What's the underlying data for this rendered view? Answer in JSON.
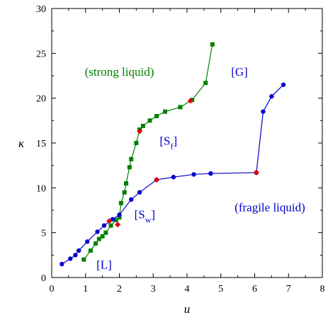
{
  "chart_data": {
    "type": "scatter",
    "xlabel": "u",
    "ylabel": "κ",
    "xlim": [
      0,
      8
    ],
    "ylim": [
      0,
      30
    ],
    "xticks": [
      "0",
      "1",
      "2",
      "3",
      "4",
      "5",
      "6",
      "7",
      "8"
    ],
    "yticks": [
      "0",
      "5",
      "10",
      "15",
      "20",
      "25",
      "30"
    ],
    "grid": false,
    "series": [
      {
        "color": "#008000",
        "marker": "square",
        "points": [
          [
            0.95,
            2.0
          ],
          [
            1.15,
            3.0
          ],
          [
            1.3,
            3.8
          ],
          [
            1.4,
            4.3
          ],
          [
            1.5,
            4.6
          ],
          [
            1.6,
            5.0
          ],
          [
            1.75,
            5.8
          ],
          [
            1.9,
            6.4
          ],
          [
            2.0,
            6.7
          ],
          [
            2.05,
            8.3
          ],
          [
            2.15,
            9.5
          ],
          [
            2.2,
            10.5
          ],
          [
            2.3,
            12.3
          ],
          [
            2.35,
            13.2
          ],
          [
            2.5,
            15.0
          ],
          [
            2.6,
            16.5
          ],
          [
            2.7,
            16.9
          ],
          [
            2.9,
            17.5
          ],
          [
            3.1,
            18.0
          ],
          [
            3.35,
            18.5
          ],
          [
            3.8,
            19.0
          ],
          [
            4.15,
            19.8
          ],
          [
            4.55,
            21.7
          ],
          [
            4.75,
            26.0
          ]
        ]
      },
      {
        "color": "#0000cc",
        "marker": "circle",
        "points": [
          [
            0.3,
            1.5
          ],
          [
            0.55,
            2.1
          ],
          [
            0.7,
            2.5
          ],
          [
            0.8,
            3.0
          ],
          [
            1.05,
            4.0
          ],
          [
            1.35,
            5.1
          ],
          [
            1.55,
            5.8
          ],
          [
            1.8,
            6.5
          ],
          [
            2.0,
            7.0
          ],
          [
            2.35,
            8.7
          ],
          [
            2.6,
            9.5
          ],
          [
            3.1,
            10.9
          ],
          [
            3.6,
            11.2
          ],
          [
            4.2,
            11.5
          ],
          [
            4.7,
            11.6
          ],
          [
            6.05,
            11.7
          ],
          [
            6.25,
            18.5
          ],
          [
            6.5,
            20.2
          ],
          [
            6.85,
            21.5
          ]
        ]
      }
    ],
    "red_markers": [
      [
        1.7,
        6.3
      ],
      [
        1.95,
        5.9
      ],
      [
        2.6,
        16.3
      ],
      [
        3.1,
        10.9
      ],
      [
        4.1,
        19.7
      ],
      [
        6.05,
        11.7
      ]
    ],
    "annotations": [
      {
        "text": "(strong liquid)",
        "x": 2.0,
        "y": 22.5,
        "color": "#008000"
      },
      {
        "text": "[G]",
        "x": 5.55,
        "y": 22.5,
        "color": "#0000cc"
      },
      {
        "text": "[S",
        "sub": "f",
        "close": "]",
        "x": 3.45,
        "y": 14.8,
        "color": "#0000cc"
      },
      {
        "text": "[S",
        "sub": "w",
        "close": "]",
        "x": 2.75,
        "y": 6.6,
        "color": "#0000cc"
      },
      {
        "text": "(fragile liquid)",
        "x": 6.45,
        "y": 7.4,
        "color": "#0000cc"
      },
      {
        "text": "[L]",
        "x": 1.55,
        "y": 1.0,
        "color": "#0000cc"
      }
    ]
  }
}
